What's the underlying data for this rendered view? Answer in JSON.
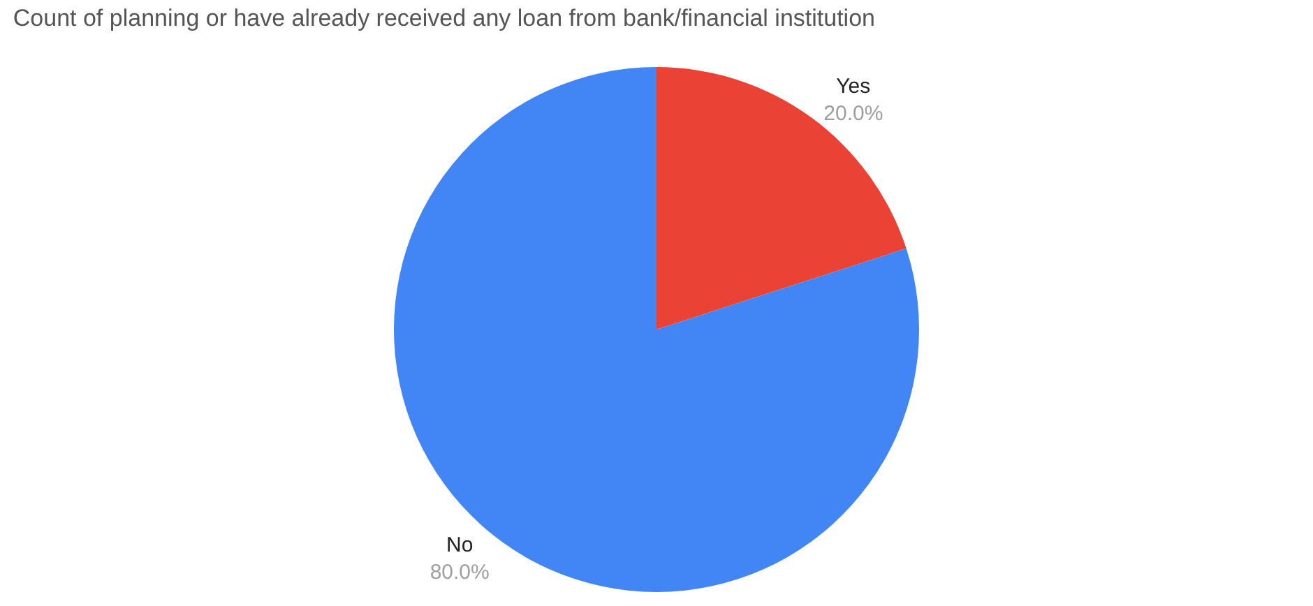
{
  "chart_data": {
    "type": "pie",
    "title": "Count of planning or have already received any loan from bank/financial institution",
    "categories": [
      "Yes",
      "No"
    ],
    "values": [
      20,
      80
    ],
    "colors": [
      "#ea4335",
      "#4285f4"
    ],
    "value_labels": [
      "20.0%",
      "80.0%"
    ],
    "legend": false
  }
}
